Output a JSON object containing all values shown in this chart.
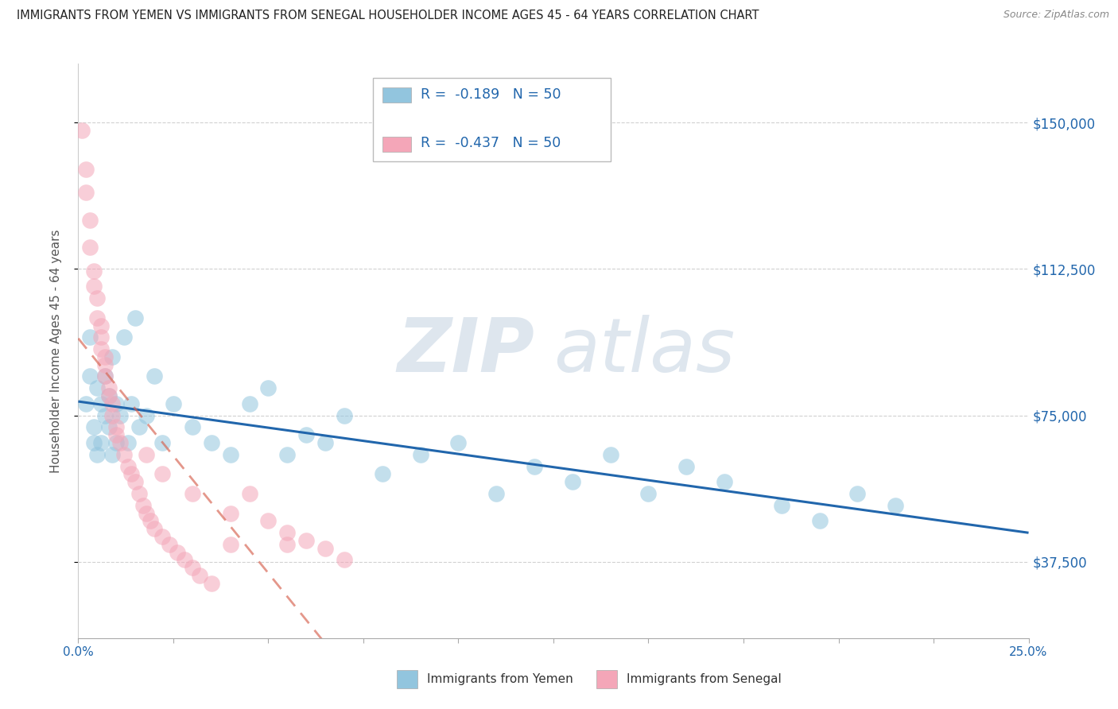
{
  "title": "IMMIGRANTS FROM YEMEN VS IMMIGRANTS FROM SENEGAL HOUSEHOLDER INCOME AGES 45 - 64 YEARS CORRELATION CHART",
  "source": "Source: ZipAtlas.com",
  "ylabel": "Householder Income Ages 45 - 64 years",
  "xlim": [
    0.0,
    0.25
  ],
  "ylim": [
    18000,
    165000
  ],
  "ytick_positions": [
    37500,
    75000,
    112500,
    150000
  ],
  "ytick_labels": [
    "$37,500",
    "$75,000",
    "$112,500",
    "$150,000"
  ],
  "xtick_positions": [
    0.0,
    0.025,
    0.05,
    0.075,
    0.1,
    0.125,
    0.15,
    0.175,
    0.2,
    0.225,
    0.25
  ],
  "xtick_label_positions": [
    0.0,
    0.25
  ],
  "xtick_end_labels": [
    "0.0%",
    "25.0%"
  ],
  "legend_R_yemen": "-0.189",
  "legend_N_yemen": "50",
  "legend_R_senegal": "-0.437",
  "legend_N_senegal": "50",
  "legend_label_yemen": "Immigrants from Yemen",
  "legend_label_senegal": "Immigrants from Senegal",
  "color_yemen": "#92c5de",
  "color_senegal": "#f4a6b8",
  "trendline_color_yemen": "#2166ac",
  "trendline_color_senegal": "#d6604d",
  "watermark_zip": "ZIP",
  "watermark_atlas": "atlas",
  "background_color": "#ffffff",
  "grid_color": "#cccccc",
  "right_label_color": "#2166ac",
  "title_color": "#222222",
  "source_color": "#888888",
  "yemen_x": [
    0.002,
    0.003,
    0.003,
    0.004,
    0.004,
    0.005,
    0.005,
    0.006,
    0.006,
    0.007,
    0.007,
    0.008,
    0.008,
    0.009,
    0.009,
    0.01,
    0.01,
    0.011,
    0.012,
    0.013,
    0.014,
    0.015,
    0.016,
    0.018,
    0.02,
    0.022,
    0.025,
    0.03,
    0.035,
    0.04,
    0.045,
    0.05,
    0.055,
    0.06,
    0.065,
    0.07,
    0.08,
    0.09,
    0.1,
    0.11,
    0.12,
    0.13,
    0.14,
    0.15,
    0.16,
    0.17,
    0.185,
    0.195,
    0.205,
    0.215
  ],
  "yemen_y": [
    78000,
    95000,
    85000,
    72000,
    68000,
    82000,
    65000,
    78000,
    68000,
    85000,
    75000,
    72000,
    80000,
    65000,
    90000,
    78000,
    68000,
    75000,
    95000,
    68000,
    78000,
    100000,
    72000,
    75000,
    85000,
    68000,
    78000,
    72000,
    68000,
    65000,
    78000,
    82000,
    65000,
    70000,
    68000,
    75000,
    60000,
    65000,
    68000,
    55000,
    62000,
    58000,
    65000,
    55000,
    62000,
    58000,
    52000,
    48000,
    55000,
    52000
  ],
  "senegal_x": [
    0.001,
    0.002,
    0.002,
    0.003,
    0.003,
    0.004,
    0.004,
    0.005,
    0.005,
    0.006,
    0.006,
    0.006,
    0.007,
    0.007,
    0.007,
    0.008,
    0.008,
    0.009,
    0.009,
    0.01,
    0.01,
    0.011,
    0.012,
    0.013,
    0.014,
    0.015,
    0.016,
    0.017,
    0.018,
    0.019,
    0.02,
    0.022,
    0.024,
    0.026,
    0.028,
    0.03,
    0.032,
    0.035,
    0.04,
    0.045,
    0.05,
    0.055,
    0.06,
    0.065,
    0.07,
    0.055,
    0.04,
    0.03,
    0.022,
    0.018
  ],
  "senegal_y": [
    148000,
    138000,
    132000,
    125000,
    118000,
    112000,
    108000,
    105000,
    100000,
    98000,
    95000,
    92000,
    90000,
    88000,
    85000,
    82000,
    80000,
    78000,
    75000,
    72000,
    70000,
    68000,
    65000,
    62000,
    60000,
    58000,
    55000,
    52000,
    50000,
    48000,
    46000,
    44000,
    42000,
    40000,
    38000,
    36000,
    34000,
    32000,
    42000,
    55000,
    48000,
    45000,
    43000,
    41000,
    38000,
    42000,
    50000,
    55000,
    60000,
    65000
  ]
}
